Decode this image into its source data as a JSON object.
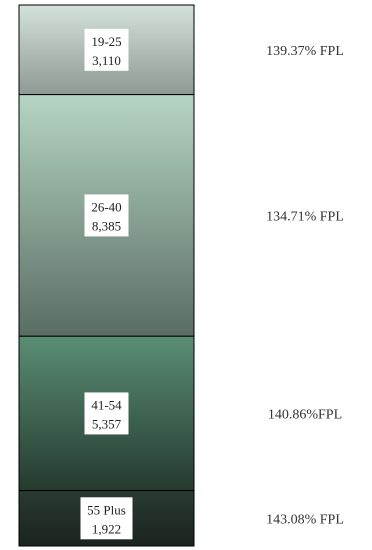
{
  "chart_data": {
    "type": "bar",
    "stacked": true,
    "orientation": "vertical",
    "segments": [
      {
        "category": "19-25",
        "value": 3110,
        "value_label": "3,110",
        "fpl": "139.37% FPL",
        "colors": [
          "#d3e2da",
          "#8e9a95"
        ]
      },
      {
        "category": "26-40",
        "value": 8385,
        "value_label": "8,385",
        "fpl": "134.71% FPL",
        "colors": [
          "#b6d5c4",
          "#596d62"
        ]
      },
      {
        "category": "41-54",
        "value": 5357,
        "value_label": "5,357",
        "fpl": "140.86%FPL",
        "colors": [
          "#5a8e75",
          "#253a2f"
        ]
      },
      {
        "category": "55 Plus",
        "value": 1922,
        "value_label": "1,922",
        "fpl": "143.08% FPL",
        "colors": [
          "#2a3a33",
          "#1a231f"
        ]
      }
    ],
    "border_color": "#000000"
  }
}
